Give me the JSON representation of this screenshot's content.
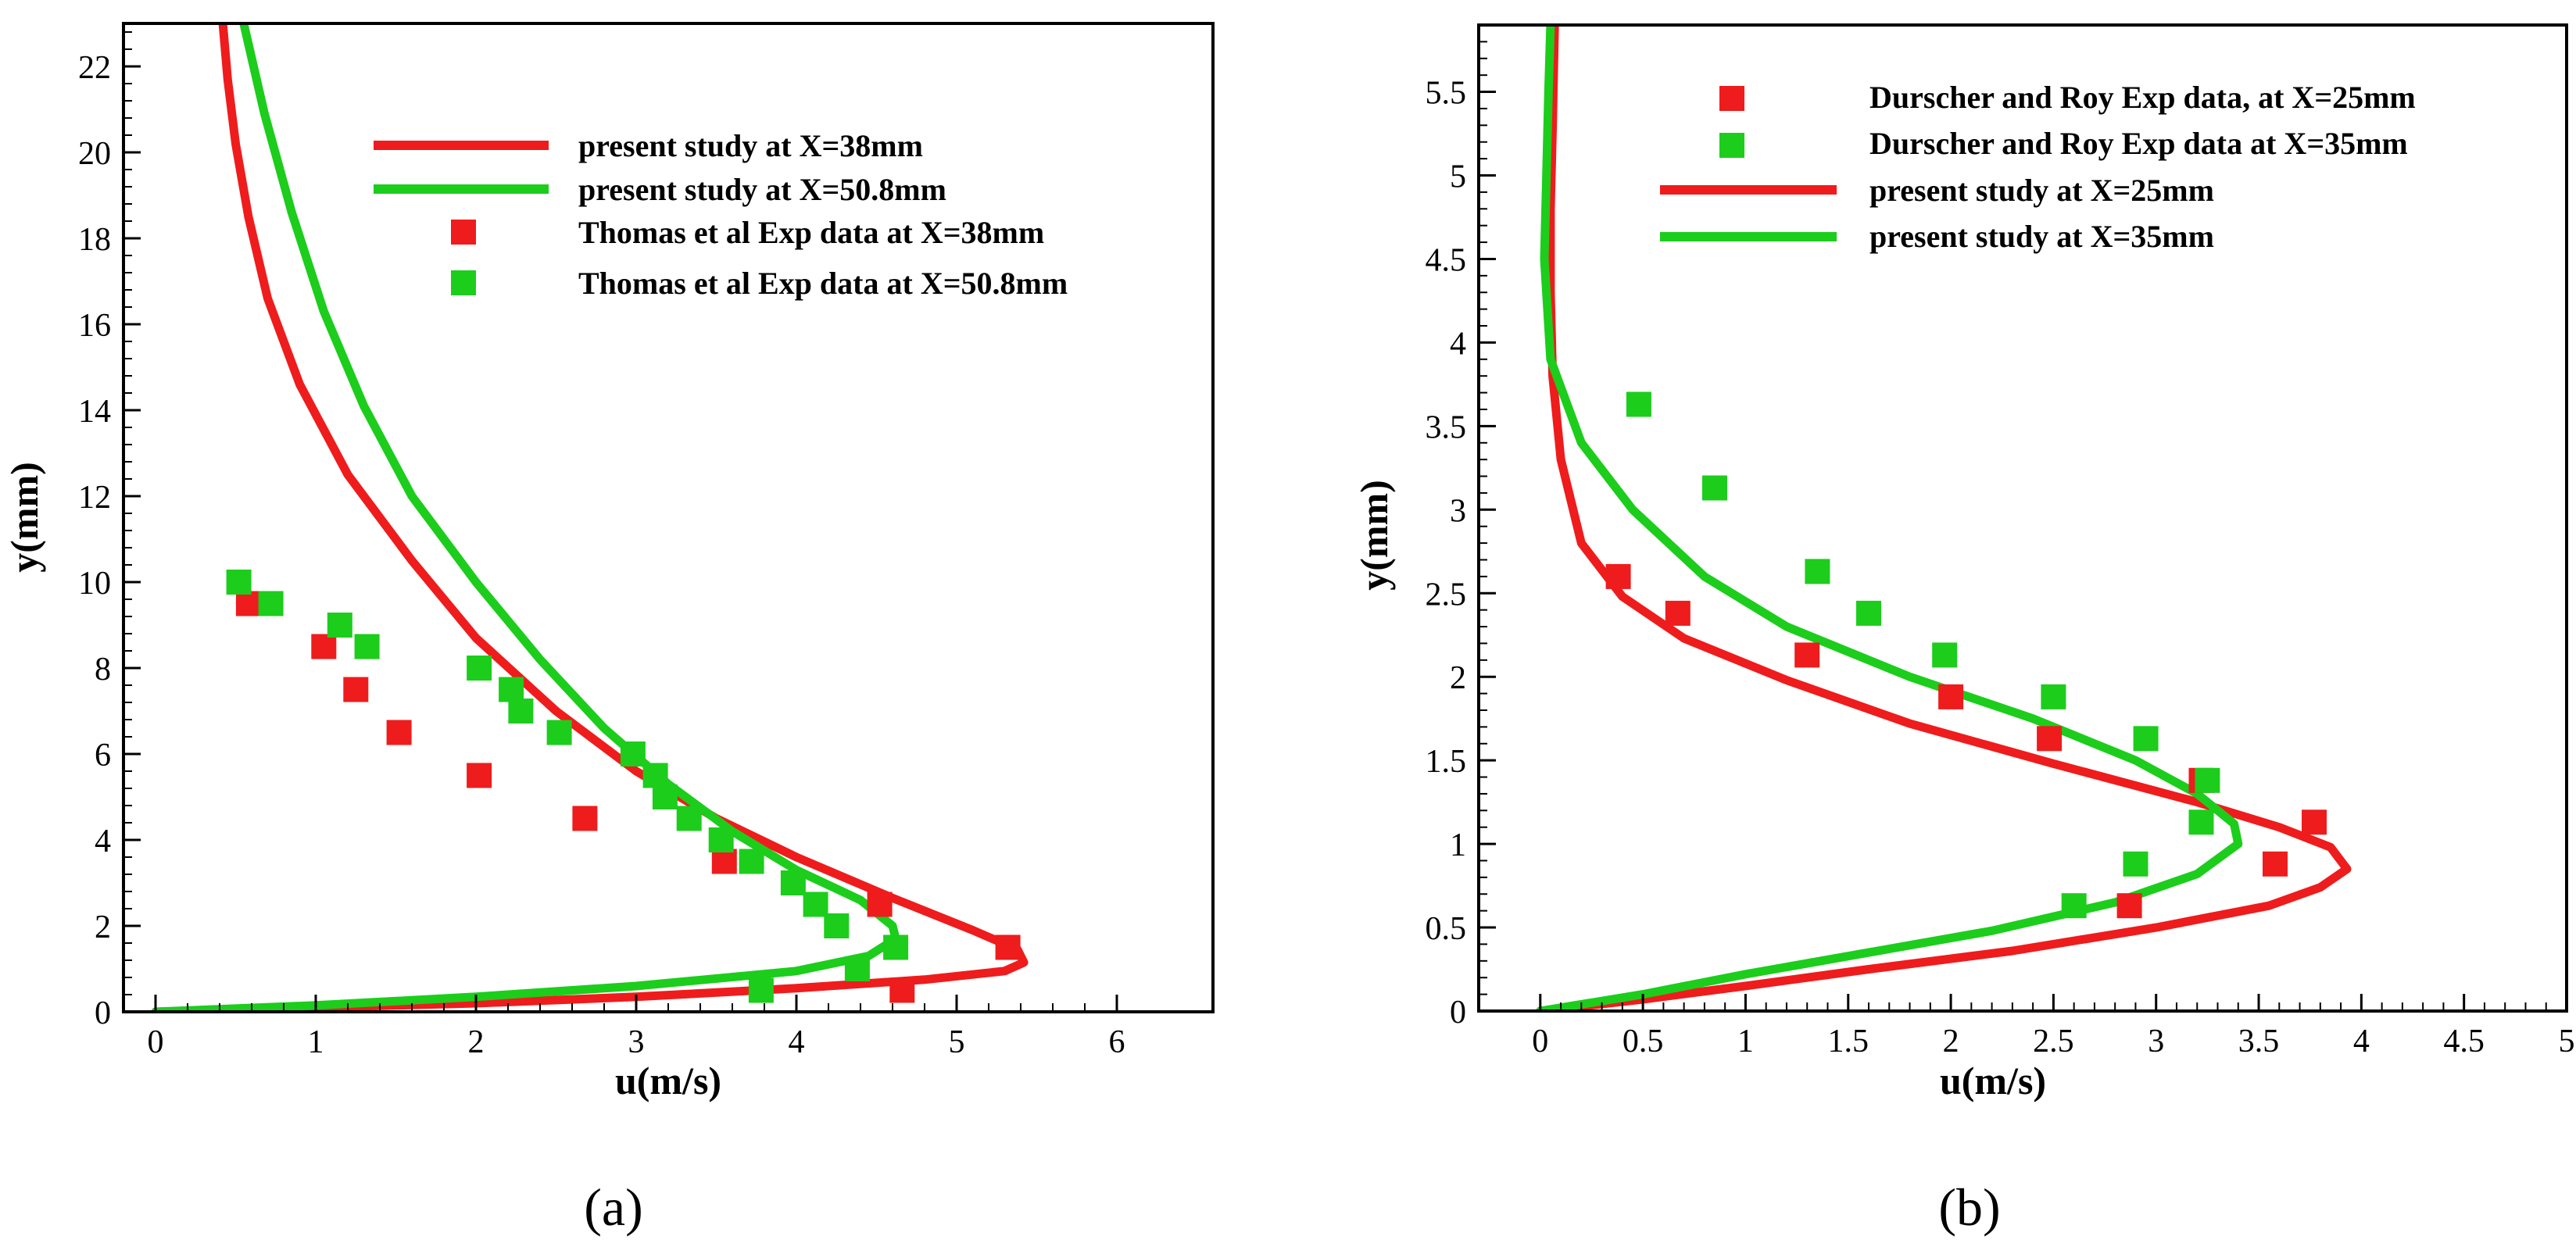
{
  "figure": {
    "panel_labels": [
      "(a)",
      "(b)"
    ],
    "colors": {
      "red": "#ee1c1c",
      "green": "#1ccd1c"
    }
  },
  "chart_data": [
    {
      "type": "line",
      "panel": "(a)",
      "title": "",
      "xlabel": "u(m/s)",
      "ylabel": "y(mm)",
      "xlim": [
        -0.2,
        6.6
      ],
      "ylim": [
        0,
        23
      ],
      "xticks": [
        0,
        1,
        2,
        3,
        4,
        5,
        6
      ],
      "yticks": [
        0,
        2,
        4,
        6,
        8,
        10,
        12,
        14,
        16,
        18,
        20,
        22
      ],
      "legend_position": "top-right",
      "series": [
        {
          "name": "present study at X=38mm",
          "kind": "line",
          "color": "#ee1c1c",
          "x": [
            0.0,
            1.0,
            2.0,
            3.0,
            4.0,
            4.8,
            5.3,
            5.42,
            5.38,
            5.1,
            4.6,
            4.0,
            3.5,
            3.0,
            2.5,
            2.0,
            1.6,
            1.2,
            0.9,
            0.7,
            0.58,
            0.5,
            0.45,
            0.42
          ],
          "y": [
            0.0,
            0.1,
            0.2,
            0.35,
            0.55,
            0.75,
            0.95,
            1.15,
            1.45,
            1.9,
            2.65,
            3.6,
            4.5,
            5.6,
            7.0,
            8.7,
            10.5,
            12.5,
            14.6,
            16.6,
            18.5,
            20.2,
            21.7,
            23.0
          ]
        },
        {
          "name": "present study at X=50.8mm",
          "kind": "line",
          "color": "#1ccd1c",
          "x": [
            0.0,
            1.0,
            2.0,
            3.0,
            4.0,
            4.45,
            4.62,
            4.6,
            4.4,
            4.0,
            3.6,
            3.2,
            2.8,
            2.4,
            2.0,
            1.6,
            1.3,
            1.05,
            0.85,
            0.68,
            0.55
          ],
          "y": [
            0.0,
            0.15,
            0.35,
            0.6,
            0.95,
            1.3,
            1.7,
            2.0,
            2.6,
            3.3,
            4.2,
            5.3,
            6.6,
            8.2,
            10.0,
            12.0,
            14.1,
            16.3,
            18.6,
            20.9,
            23.0
          ]
        },
        {
          "name": "Thomas et al Exp data at X=38mm",
          "kind": "scatter",
          "color": "#ee1c1c",
          "x": [
            0.58,
            1.05,
            1.25,
            1.52,
            2.02,
            2.68,
            3.55,
            4.52,
            5.32,
            4.66
          ],
          "y": [
            9.5,
            8.5,
            7.5,
            6.5,
            5.5,
            4.5,
            3.5,
            2.5,
            1.5,
            0.5
          ]
        },
        {
          "name": "Thomas et al Exp data at X=50.8mm",
          "kind": "scatter",
          "color": "#1ccd1c",
          "x": [
            0.52,
            0.72,
            1.15,
            1.32,
            2.02,
            2.22,
            2.28,
            2.52,
            2.98,
            3.12,
            3.18,
            3.33,
            3.53,
            3.72,
            3.98,
            4.12,
            4.25,
            4.62,
            4.38,
            3.78
          ],
          "y": [
            10.0,
            9.5,
            9.0,
            8.5,
            8.0,
            7.5,
            7.0,
            6.5,
            6.0,
            5.5,
            5.0,
            4.5,
            4.0,
            3.5,
            3.0,
            2.5,
            2.0,
            1.5,
            1.0,
            0.5
          ]
        }
      ]
    },
    {
      "type": "line",
      "panel": "(b)",
      "title": "",
      "xlabel": "u(m/s)",
      "ylabel": "y(mm)",
      "xlim": [
        -0.3,
        5
      ],
      "ylim": [
        0,
        5.9
      ],
      "xticks": [
        0,
        0.5,
        1,
        1.5,
        2,
        2.5,
        3,
        3.5,
        4,
        4.5,
        5
      ],
      "yticks": [
        0,
        0.5,
        1,
        1.5,
        2,
        2.5,
        3,
        3.5,
        4,
        4.5,
        5,
        5.5
      ],
      "legend_position": "top-right",
      "series": [
        {
          "name": "Durscher and Roy Exp data, at X=25mm",
          "kind": "scatter",
          "color": "#ee1c1c",
          "x": [
            0.38,
            0.67,
            1.3,
            2.0,
            2.48,
            3.22,
            3.77,
            3.58,
            2.87
          ],
          "y": [
            2.6,
            2.38,
            2.13,
            1.88,
            1.63,
            1.38,
            1.13,
            0.88,
            0.63
          ]
        },
        {
          "name": "Durscher and Roy Exp data at X=35mm",
          "kind": "scatter",
          "color": "#1ccd1c",
          "x": [
            0.48,
            0.85,
            1.35,
            1.6,
            1.97,
            2.5,
            2.95,
            3.25,
            3.22,
            2.9,
            2.6
          ],
          "y": [
            3.63,
            3.13,
            2.63,
            2.38,
            2.13,
            1.88,
            1.63,
            1.38,
            1.13,
            0.88,
            0.63
          ]
        },
        {
          "name": "present study at X=25mm",
          "kind": "line",
          "color": "#ee1c1c",
          "x": [
            0.0,
            0.5,
            1.0,
            1.6,
            2.3,
            3.0,
            3.55,
            3.8,
            3.93,
            3.85,
            3.6,
            3.2,
            2.5,
            1.8,
            1.2,
            0.7,
            0.4,
            0.2,
            0.1,
            0.06,
            0.05,
            0.05,
            0.06,
            0.07
          ],
          "y": [
            0.0,
            0.07,
            0.15,
            0.25,
            0.36,
            0.5,
            0.63,
            0.74,
            0.85,
            0.98,
            1.1,
            1.25,
            1.48,
            1.72,
            1.98,
            2.23,
            2.48,
            2.8,
            3.3,
            3.8,
            4.3,
            4.8,
            5.3,
            5.9
          ]
        },
        {
          "name": "present study at X=35mm",
          "kind": "line",
          "color": "#1ccd1c",
          "x": [
            0.0,
            0.5,
            1.0,
            1.6,
            2.2,
            2.8,
            3.2,
            3.4,
            3.38,
            3.2,
            2.9,
            2.4,
            1.8,
            1.2,
            0.8,
            0.45,
            0.2,
            0.05,
            0.02,
            0.03,
            0.04,
            0.05
          ],
          "y": [
            0.0,
            0.1,
            0.22,
            0.35,
            0.48,
            0.65,
            0.82,
            1.0,
            1.12,
            1.3,
            1.5,
            1.75,
            2.0,
            2.3,
            2.6,
            3.0,
            3.4,
            3.9,
            4.5,
            5.0,
            5.5,
            5.9
          ]
        }
      ]
    }
  ]
}
